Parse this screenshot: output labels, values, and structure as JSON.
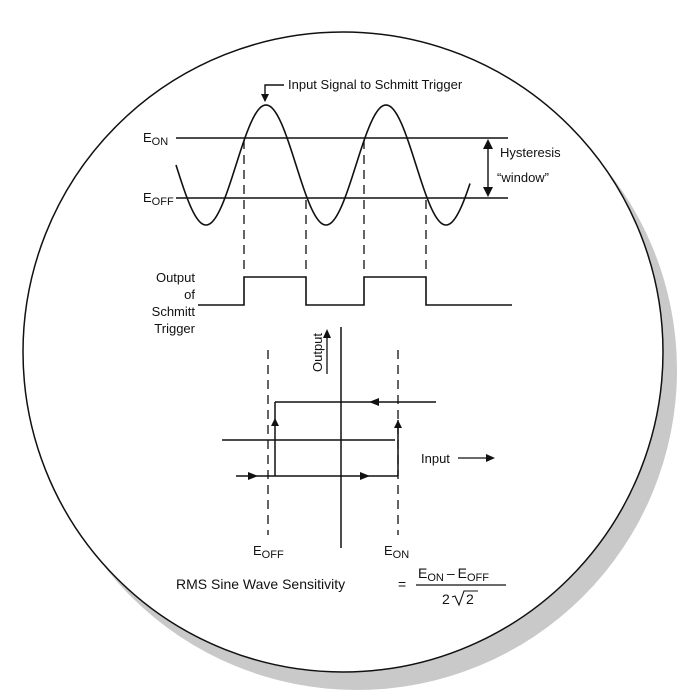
{
  "colors": {
    "ink": "#111111",
    "shadow": "#c9c9c9",
    "background": "#ffffff"
  },
  "diagram": {
    "input_signal_label": "Input Signal to Schmitt Trigger",
    "e_on": {
      "main": "E",
      "sub": "ON"
    },
    "e_off": {
      "main": "E",
      "sub": "OFF"
    },
    "hysteresis": {
      "line1": "Hysteresis",
      "line2": "“window”"
    },
    "output_label": [
      "Output",
      "of",
      "Schmitt",
      "Trigger"
    ],
    "transfer": {
      "output_axis_label": "Output",
      "input_axis_label": "Input",
      "e_off": {
        "main": "E",
        "sub": "OFF"
      },
      "e_on": {
        "main": "E",
        "sub": "ON"
      }
    },
    "formula": {
      "lhs": "RMS Sine Wave Sensitivity",
      "equals": "=",
      "num_e1": "E",
      "num_sub1": "ON",
      "minus": "–",
      "num_e2": "E",
      "num_sub2": "OFF",
      "den_coef": "2",
      "den_radicand": "2"
    }
  }
}
